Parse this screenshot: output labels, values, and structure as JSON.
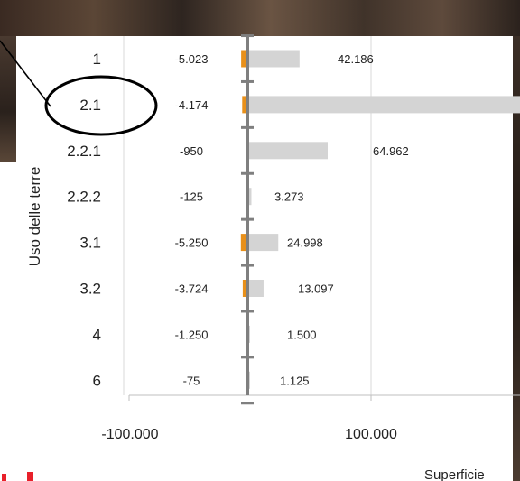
{
  "chart_data": {
    "type": "bar",
    "orientation": "horizontal",
    "categories": [
      "1",
      "2.1",
      "2.2.1",
      "2.2.2",
      "3.1",
      "3.2",
      "4",
      "6"
    ],
    "series": [
      {
        "values": [
          -5023,
          -4174,
          -950,
          -125,
          -5250,
          -3724,
          -1250,
          -75
        ],
        "color": "#E8901A"
      },
      {
        "values": [
          42186,
          250000,
          64962,
          3273,
          24998,
          13097,
          1500,
          1125
        ],
        "color": "#D4D4D4"
      }
    ],
    "negative_labels": [
      "-5.023",
      "-4.174",
      "-950",
      "-125",
      "-5.250",
      "-3.724",
      "-1.250",
      "-75"
    ],
    "positive_labels": [
      "42.186",
      "",
      "64.962",
      "3.273",
      "24.998",
      "13.097",
      "1.500",
      "1.125"
    ],
    "xtick_labels": [
      "-100.000",
      "100.000"
    ],
    "xticks": [
      -100000,
      100000
    ],
    "ylabel": "Uso delle terre",
    "xlabel": "Superficie",
    "grid": true,
    "highlight_category": "2.1"
  }
}
